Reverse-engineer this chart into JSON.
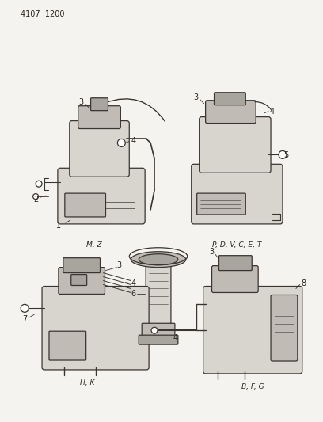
{
  "title_code": "4107  1200",
  "bg_color": "#f5f3f0",
  "line_color": "#3a3530",
  "fill_light": "#d8d4ce",
  "fill_mid": "#c0bbb5",
  "fill_dark": "#a8a49e",
  "label_color": "#2a2520",
  "font_size_title": 7,
  "font_size_label": 6,
  "font_size_caption": 6.5,
  "captions": {
    "top_left": "M, Z",
    "top_right": "P, D, V, C, E, T",
    "bottom_left": "H, K",
    "bottom_right": "B, F, G"
  }
}
